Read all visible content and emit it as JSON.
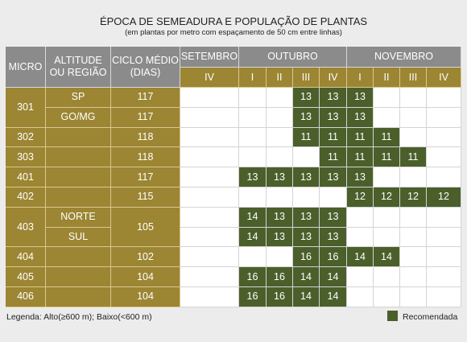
{
  "header": {
    "title": "ÉPOCA DE SEMEADURA E POPULAÇÃO DE PLANTAS",
    "subtitle": "(em plantas por metro com espaçamento de 50 cm entre linhas)"
  },
  "table": {
    "columns": [
      "MICRO",
      "ALTITUDE\nOU REGIÃO",
      "CICLO MÉDIO\n(DIAS)"
    ],
    "months": [
      {
        "name": "SETEMBRO",
        "periods": [
          "IV"
        ]
      },
      {
        "name": "OUTUBRO",
        "periods": [
          "I",
          "II",
          "III",
          "IV"
        ]
      },
      {
        "name": "NOVEMBRO",
        "periods": [
          "I",
          "II",
          "III",
          "IV"
        ]
      }
    ],
    "groups": [
      {
        "micro": "301",
        "rows": [
          {
            "altitude": "SP",
            "ciclo": "117",
            "cells": [
              null,
              null,
              null,
              13,
              13,
              13,
              null,
              null,
              null
            ]
          },
          {
            "altitude": "GO/MG",
            "ciclo": "117",
            "cells": [
              null,
              null,
              null,
              13,
              13,
              13,
              null,
              null,
              null
            ]
          }
        ]
      },
      {
        "micro": "302",
        "rows": [
          {
            "ciclo": "118",
            "cells": [
              null,
              null,
              null,
              11,
              11,
              11,
              11,
              null,
              null
            ]
          }
        ]
      },
      {
        "micro": "303",
        "rows": [
          {
            "ciclo": "118",
            "cells": [
              null,
              null,
              null,
              null,
              11,
              11,
              11,
              11,
              null
            ]
          }
        ]
      },
      {
        "micro": "401",
        "rows": [
          {
            "ciclo": "117",
            "cells": [
              null,
              13,
              13,
              13,
              13,
              13,
              null,
              null,
              null
            ]
          }
        ]
      },
      {
        "micro": "402",
        "rows": [
          {
            "ciclo": "115",
            "cells": [
              null,
              null,
              null,
              null,
              null,
              12,
              12,
              12,
              12
            ]
          }
        ]
      },
      {
        "micro": "403",
        "ciclo": "105",
        "rows": [
          {
            "altitude": "NORTE",
            "cells": [
              null,
              14,
              13,
              13,
              13,
              null,
              null,
              null,
              null
            ]
          },
          {
            "altitude": "SUL",
            "cells": [
              null,
              14,
              13,
              13,
              13,
              null,
              null,
              null,
              null
            ]
          }
        ]
      },
      {
        "micro": "404",
        "rows": [
          {
            "ciclo": "102",
            "cells": [
              null,
              null,
              null,
              16,
              16,
              14,
              14,
              null,
              null
            ]
          }
        ]
      },
      {
        "micro": "405",
        "rows": [
          {
            "ciclo": "104",
            "cells": [
              null,
              16,
              16,
              14,
              14,
              null,
              null,
              null,
              null
            ]
          }
        ]
      },
      {
        "micro": "406",
        "rows": [
          {
            "ciclo": "104",
            "cells": [
              null,
              16,
              16,
              14,
              14,
              null,
              null,
              null,
              null
            ]
          }
        ]
      }
    ]
  },
  "legend": {
    "text": "Legenda: Alto(≥600 m); Baixo(<600 m)",
    "recommended": "Recomendada"
  }
}
